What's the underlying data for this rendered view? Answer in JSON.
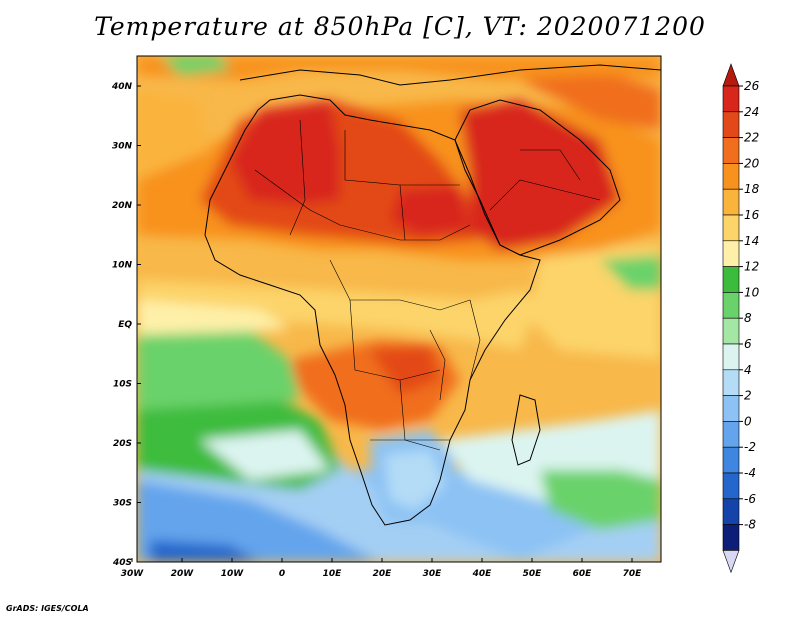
{
  "title": "Temperature at 850hPa [C], VT: 2020071200",
  "credit": "GrADS: IGES/COLA",
  "map": {
    "lon_range": [
      -30,
      75
    ],
    "lat_range": [
      -40,
      45
    ],
    "lon_ticks": [
      "30W",
      "20W",
      "10W",
      "0",
      "10E",
      "20E",
      "30E",
      "40E",
      "50E",
      "60E",
      "70E"
    ],
    "lat_ticks": [
      "40N",
      "30N",
      "20N",
      "10N",
      "EQ",
      "10S",
      "20S",
      "30S",
      "40S"
    ]
  },
  "colorbar": {
    "labels": [
      "26",
      "24",
      "22",
      "20",
      "18",
      "16",
      "14",
      "12",
      "10",
      "8",
      "6",
      "4",
      "2",
      "0",
      "-2",
      "-4",
      "-6",
      "-8"
    ],
    "colors": [
      "#d8261a",
      "#e34818",
      "#f06e1e",
      "#f8921e",
      "#fab43c",
      "#fcd46a",
      "#fef0a8",
      "#3cbc3c",
      "#6ad26a",
      "#a4e6a4",
      "#dcf4f0",
      "#b4dcf6",
      "#8cc2f4",
      "#64a4ec",
      "#3e86e0",
      "#2466cc",
      "#1444aa",
      "#0c1e78"
    ],
    "triangle_top": "#b41a0e",
    "triangle_bottom": "#d8d8f4"
  }
}
